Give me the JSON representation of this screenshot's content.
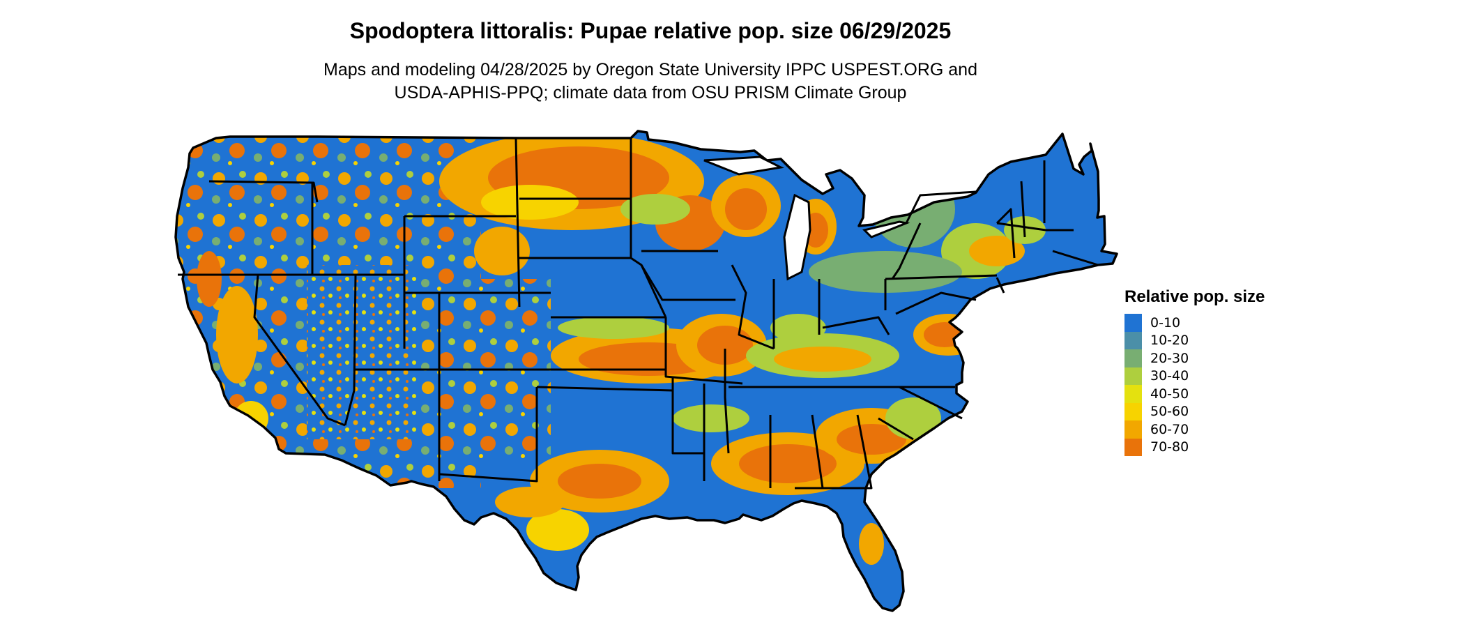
{
  "title": "Spodoptera littoralis: Pupae relative pop. size 06/29/2025",
  "subtitle": {
    "line1": "Maps and modeling 04/28/2025 by Oregon State University IPPC USPEST.ORG and",
    "line2": "USDA-APHIS-PPQ; climate data from OSU PRISM Climate Group"
  },
  "legend": {
    "title": "Relative pop. size",
    "items": [
      {
        "label": "0-10",
        "color": "#1f73d3"
      },
      {
        "label": "10-20",
        "color": "#4b8fa8"
      },
      {
        "label": "20-30",
        "color": "#78ae72"
      },
      {
        "label": "30-40",
        "color": "#aecf3e"
      },
      {
        "label": "40-50",
        "color": "#e4e10f"
      },
      {
        "label": "50-60",
        "color": "#f7d300"
      },
      {
        "label": "60-70",
        "color": "#f2a700"
      },
      {
        "label": "70-80",
        "color": "#e9730a"
      }
    ]
  }
}
